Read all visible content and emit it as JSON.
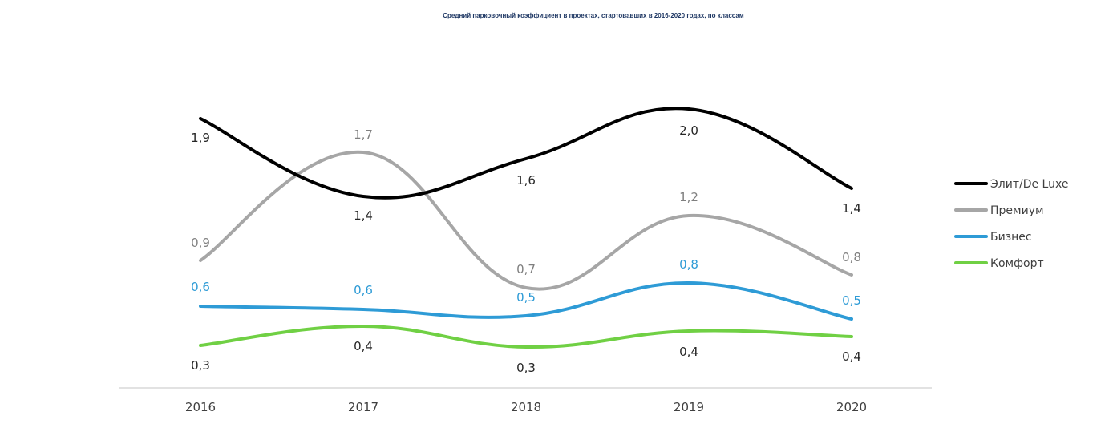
{
  "chart_data": {
    "type": "line",
    "title": "Средний парковочный коэффициент в проектах, стартовавших в 2016-2020 годах, по классам",
    "xlabel": "",
    "ylabel": "",
    "categories": [
      "2016",
      "2017",
      "2018",
      "2019",
      "2020"
    ],
    "series": [
      {
        "name": "Элит/De Luxe",
        "values": [
          1.9,
          1.4,
          1.6,
          2.0,
          1.4
        ],
        "labels": [
          "1,9",
          "1,4",
          "1,6",
          "2,0",
          "1,4"
        ],
        "color": "#000000",
        "label_color": "#262626"
      },
      {
        "name": "Премиум",
        "values": [
          0.9,
          1.7,
          0.7,
          1.2,
          0.8
        ],
        "labels": [
          "0,9",
          "1,7",
          "0,7",
          "1,2",
          "0,8"
        ],
        "color": "#a6a6a6",
        "label_color": "#7f7f7f"
      },
      {
        "name": "Бизнес",
        "values": [
          0.6,
          0.6,
          0.5,
          0.8,
          0.5
        ],
        "labels": [
          "0,6",
          "0,6",
          "0,5",
          "0,8",
          "0,5"
        ],
        "color": "#2e9bd6",
        "label_color": "#2e9bd6"
      },
      {
        "name": "Комфорт",
        "values": [
          0.3,
          0.4,
          0.3,
          0.4,
          0.4
        ],
        "labels": [
          "0,3",
          "0,4",
          "0,3",
          "0,4",
          "0,4"
        ],
        "color": "#70d044",
        "label_color": "#262626"
      }
    ],
    "grid": false,
    "legend_position": "right",
    "smooth": true
  }
}
